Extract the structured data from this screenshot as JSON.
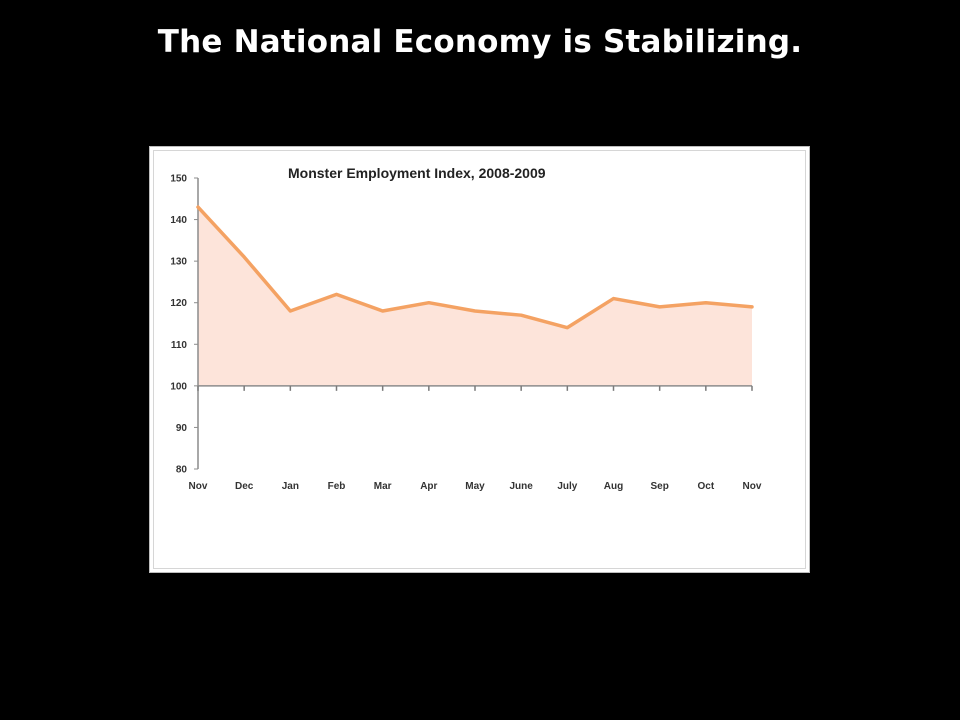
{
  "slide": {
    "title": "The National Economy is Stabilizing."
  },
  "chart_data": {
    "type": "area",
    "title": "Monster Employment Index, 2008-2009",
    "categories": [
      "Nov",
      "Dec",
      "Jan",
      "Feb",
      "Mar",
      "Apr",
      "May",
      "June",
      "July",
      "Aug",
      "Sep",
      "Oct",
      "Nov"
    ],
    "series": [
      {
        "values": [
          143,
          131,
          118,
          122,
          118,
          120,
          118,
          117,
          114,
          121,
          119,
          120,
          119
        ]
      }
    ],
    "baseline": 100,
    "ylim": [
      80,
      150
    ],
    "yticks": [
      80,
      90,
      100,
      110,
      120,
      130,
      140,
      150
    ],
    "xlabel": "",
    "ylabel": "",
    "grid": false,
    "colors": {
      "line": "#f4a263",
      "fill": "#fde4da"
    }
  }
}
